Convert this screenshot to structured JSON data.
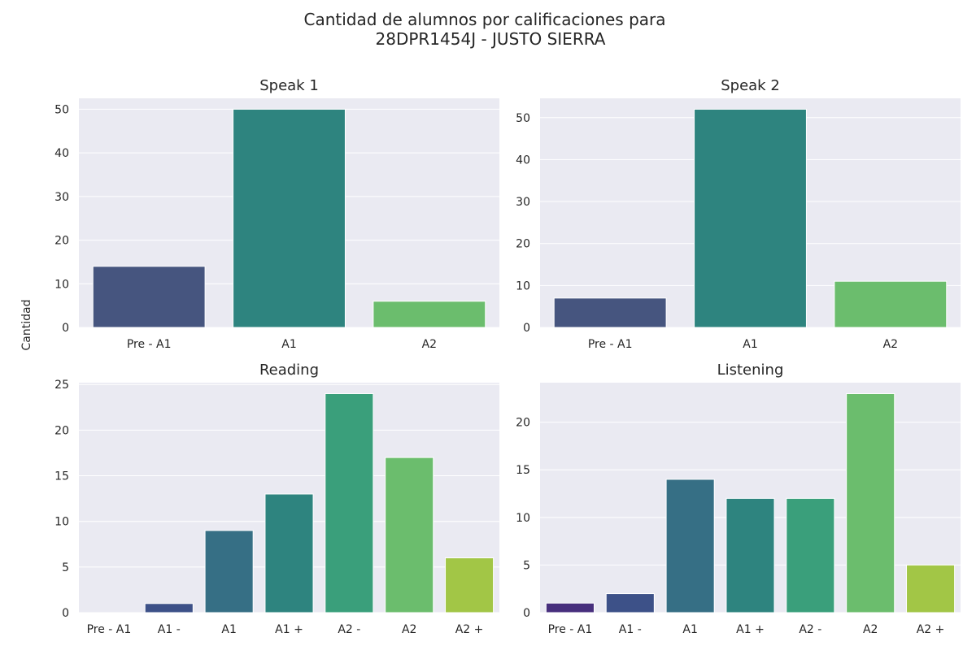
{
  "figure": {
    "title_line1": "Cantidad de alumnos por calificaciones para",
    "title_line2": "28DPR1454J - JUSTO SIERRA",
    "ylabel": "Cantidad"
  },
  "chart_data": [
    {
      "type": "bar",
      "title": "Speak 1",
      "categories": [
        "Pre - A1",
        "A1",
        "A2"
      ],
      "values": [
        14,
        50,
        6
      ],
      "colors": [
        "#46557f",
        "#2e847f",
        "#6bbd6d"
      ],
      "ylim": [
        0,
        52.5
      ],
      "yticks": [
        0,
        10,
        20,
        30,
        40,
        50
      ],
      "grid": true
    },
    {
      "type": "bar",
      "title": "Speak 2",
      "categories": [
        "Pre - A1",
        "A1",
        "A2"
      ],
      "values": [
        7,
        52,
        11
      ],
      "colors": [
        "#46557f",
        "#2e847f",
        "#6bbd6d"
      ],
      "ylim": [
        0,
        54.6
      ],
      "yticks": [
        0,
        10,
        20,
        30,
        40,
        50
      ],
      "grid": true
    },
    {
      "type": "bar",
      "title": "Reading",
      "categories": [
        "Pre - A1",
        "A1 -",
        "A1",
        "A1 +",
        "A2 -",
        "A2",
        "A2 +"
      ],
      "values": [
        0,
        1,
        9,
        13,
        24,
        17,
        6
      ],
      "colors": [
        "#472f7d",
        "#3d5188",
        "#366f85",
        "#2e847f",
        "#3a9f7b",
        "#6bbd6d",
        "#a2c646"
      ],
      "ylim": [
        0,
        25.2
      ],
      "yticks": [
        0,
        5,
        10,
        15,
        20,
        25
      ],
      "grid": true
    },
    {
      "type": "bar",
      "title": "Listening",
      "categories": [
        "Pre - A1",
        "A1 -",
        "A1",
        "A1 +",
        "A2 -",
        "A2",
        "A2 +"
      ],
      "values": [
        1,
        2,
        14,
        12,
        12,
        23,
        5
      ],
      "colors": [
        "#472f7d",
        "#3d5188",
        "#366f85",
        "#2e847f",
        "#3a9f7b",
        "#6bbd6d",
        "#a2c646"
      ],
      "ylim": [
        0,
        24.15
      ],
      "yticks": [
        0,
        5,
        10,
        15,
        20
      ],
      "grid": true
    }
  ]
}
